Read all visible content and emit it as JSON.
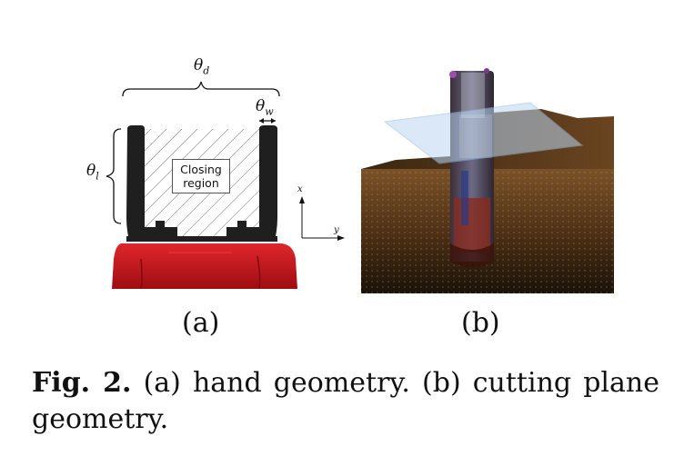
{
  "figure": {
    "panel_a": {
      "label": "(a)",
      "theta_d": "θ",
      "theta_d_sub": "d",
      "theta_w": "θ",
      "theta_w_sub": "w",
      "theta_l": "θ",
      "theta_l_sub": "l",
      "closing_region_line1": "Closing",
      "closing_region_line2": "region",
      "axis_x": "x",
      "axis_y": "y"
    },
    "panel_b": {
      "label": "(b)"
    }
  },
  "caption": {
    "fig_id": "Fig. 2.",
    "text": " (a) hand geometry. (b) cutting plane geometry."
  },
  "colors": {
    "gripper_finger": "#1f1f1f",
    "gripper_body": "#c8141a",
    "scene_background": "#5a3a1c",
    "cutting_plane": "#bcd7f2"
  }
}
